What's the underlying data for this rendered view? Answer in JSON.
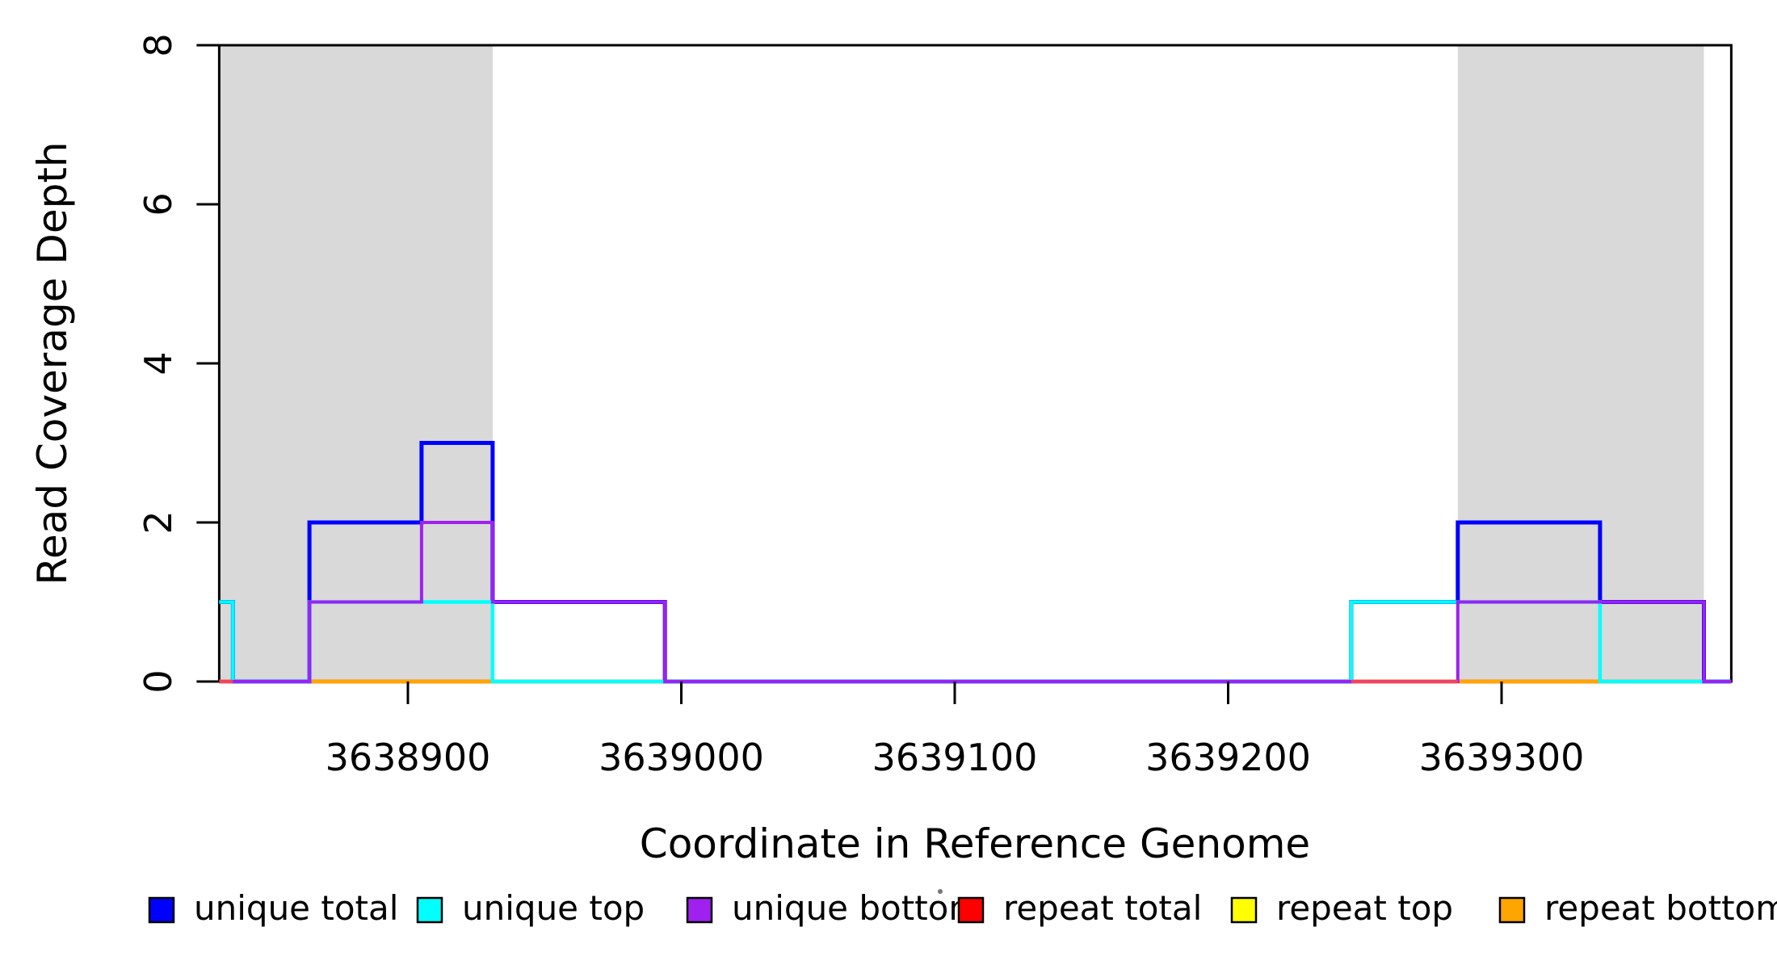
{
  "chart_data": {
    "type": "line",
    "subtype": "step-coverage",
    "title": "",
    "xlabel": "Coordinate in Reference Genome",
    "ylabel": "Read Coverage Depth",
    "xlim": [
      3638831,
      3639384
    ],
    "ylim": [
      0,
      8
    ],
    "x_ticks": [
      3638900,
      3639000,
      3639100,
      3639200,
      3639300
    ],
    "y_ticks": [
      0,
      2,
      4,
      6,
      8
    ],
    "grid": "off",
    "shade_color": "#d9d9d9",
    "shaded_regions": [
      {
        "start": 3638831,
        "end": 3638931
      },
      {
        "start": 3639284,
        "end": 3639374
      }
    ],
    "series": [
      {
        "name": "repeat top",
        "color": "#ffff00",
        "width": 4.5,
        "steps": [
          [
            3638831,
            0
          ],
          [
            3639384,
            0
          ]
        ]
      },
      {
        "name": "repeat total",
        "color": "#ff0000",
        "width": 4.5,
        "steps": [
          [
            3638831,
            0
          ],
          [
            3639384,
            0
          ]
        ]
      },
      {
        "name": "repeat bottom",
        "color": "#ffa500",
        "width": 4.5,
        "steps": [
          [
            3638831,
            0
          ],
          [
            3639384,
            0
          ]
        ]
      },
      {
        "name": "unique total",
        "color": "#0000ff",
        "width": 5,
        "steps": [
          [
            3638831,
            1
          ],
          [
            3638836,
            0
          ],
          [
            3638864,
            2
          ],
          [
            3638905,
            3
          ],
          [
            3638931,
            1
          ],
          [
            3638994,
            0
          ],
          [
            3639245,
            1
          ],
          [
            3639284,
            2
          ],
          [
            3639336,
            1
          ],
          [
            3639374,
            0
          ],
          [
            3639384,
            0
          ]
        ]
      },
      {
        "name": "unique top",
        "color": "#00ffff",
        "width": 4.5,
        "steps": [
          [
            3638831,
            1
          ],
          [
            3638836,
            0
          ],
          [
            3638864,
            1
          ],
          [
            3638931,
            0
          ],
          [
            3639245,
            1
          ],
          [
            3639336,
            0
          ],
          [
            3639384,
            0
          ]
        ]
      },
      {
        "name": "unique bottom",
        "color": "#a020f0",
        "width": 4,
        "steps": [
          [
            3638831,
            0
          ],
          [
            3638864,
            1
          ],
          [
            3638905,
            2
          ],
          [
            3638931,
            1
          ],
          [
            3638994,
            0
          ],
          [
            3639284,
            1
          ],
          [
            3639374,
            0
          ],
          [
            3639384,
            0
          ]
        ]
      }
    ],
    "accent_segments": [
      {
        "x1": 3638831,
        "x2": 3638836,
        "color": "#ee4466"
      },
      {
        "x1": 3639245,
        "x2": 3639284,
        "color": "#ee4466"
      }
    ],
    "legend": [
      {
        "label": "unique total",
        "color": "#0000ff"
      },
      {
        "label": "unique top",
        "color": "#00ffff"
      },
      {
        "label": "unique bottom",
        "color": "#a020f0"
      },
      {
        "label": "repeat total",
        "color": "#ff0000"
      },
      {
        "label": "repeat top",
        "color": "#ffff00"
      },
      {
        "label": "repeat bottom",
        "color": "#ffa500"
      }
    ],
    "legend_position": "bottom",
    "y_tick_labels": [
      "0",
      "2",
      "4",
      "6",
      "8"
    ],
    "x_tick_labels": [
      "3638900",
      "3639000",
      "3639100",
      "3639200",
      "3639300"
    ]
  }
}
